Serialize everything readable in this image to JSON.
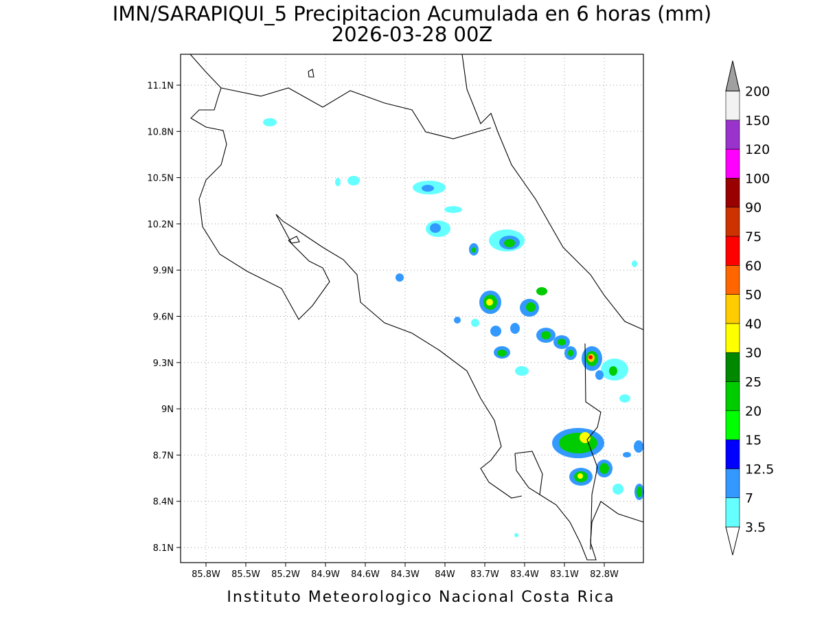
{
  "header": {
    "title": "IMN/SARAPIQUI_5 Precipitacion Acumulada en 6 horas (mm)",
    "subtitle": "2026-03-28 00Z"
  },
  "map": {
    "lon_ticks": [
      "85.8W",
      "85.5W",
      "85.2W",
      "84.9W",
      "84.6W",
      "84.3W",
      "84W",
      "83.7W",
      "83.4W",
      "83.1W",
      "82.8W"
    ],
    "lat_ticks": [
      "11.1N",
      "10.8N",
      "10.5N",
      "10.2N",
      "9.9N",
      "9.6N",
      "9.3N",
      "9N",
      "8.7N",
      "8.4N",
      "8.1N"
    ]
  },
  "colorbar": {
    "levels": [
      3.5,
      7,
      12.5,
      15,
      20,
      25,
      30,
      40,
      50,
      60,
      75,
      90,
      100,
      120,
      150,
      200
    ],
    "under_color": "#ffffff",
    "colors": [
      "#66ffff",
      "#3399ff",
      "#0000ff",
      "#00ff00",
      "#00cc00",
      "#008800",
      "#ffff00",
      "#ffcc00",
      "#ff6600",
      "#ff0000",
      "#cc3300",
      "#990000",
      "#ff00ff",
      "#9933cc",
      "#f2f2f2"
    ],
    "over_color": "#a0a0a0"
  },
  "footer": "Instituto Meteorologico Nacional Costa Rica"
}
